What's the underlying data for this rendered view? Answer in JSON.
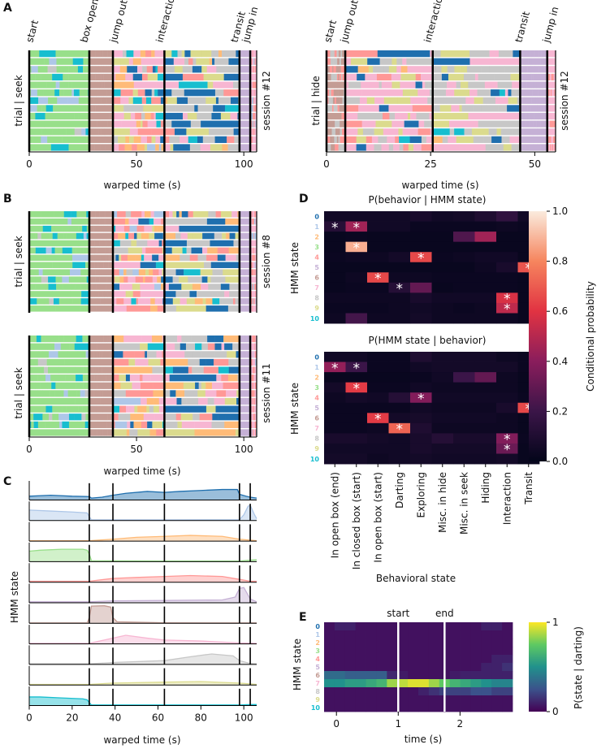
{
  "panel_labels": [
    "A",
    "B",
    "C",
    "D",
    "E"
  ],
  "hmm_colors": [
    "#1f6fae",
    "#aec7e8",
    "#ffbb78",
    "#98df8a",
    "#ff9896",
    "#c5b0d5",
    "#c49c94",
    "#f7b6d2",
    "#c7c7c7",
    "#dbdb8d",
    "#17becf"
  ],
  "state_ids": [
    "0",
    "1",
    "2",
    "3",
    "4",
    "5",
    "6",
    "7",
    "8",
    "9",
    "10"
  ],
  "chart_data": [
    {
      "id": "A-left",
      "type": "ethogram",
      "ylabel": "trial | seek",
      "session_label": "session #12",
      "xlabel": "warped time (s)",
      "x_ticks": [
        0,
        50,
        100
      ],
      "xlim": [
        0,
        106
      ],
      "n_trials": 13,
      "event_labels": [
        "start",
        "box open",
        "jump out",
        "interaction",
        "transit",
        "jump in"
      ],
      "event_times": [
        0,
        28,
        39,
        63,
        98,
        103
      ]
    },
    {
      "id": "A-right",
      "type": "ethogram",
      "ylabel": "trial | hide",
      "session_label": "session #12",
      "xlabel": "warped time (s)",
      "x_ticks": [
        0,
        25,
        50
      ],
      "xlim": [
        0,
        55
      ],
      "n_trials": 13,
      "event_labels": [
        "start",
        "jump out",
        "interaction",
        "transit",
        "jump in"
      ],
      "event_times": [
        0,
        4.5,
        25.5,
        46.5,
        53
      ]
    },
    {
      "id": "B-top",
      "type": "ethogram",
      "ylabel": "trial | seek",
      "session_label": "session #8",
      "xlim": [
        0,
        106
      ],
      "n_trials": 14,
      "event_times": [
        0,
        28,
        39,
        63,
        98,
        103
      ]
    },
    {
      "id": "B-bottom",
      "type": "ethogram",
      "ylabel": "trial | seek",
      "session_label": "session #11",
      "xlabel": "warped time (s)",
      "x_ticks": [
        0,
        50,
        100
      ],
      "xlim": [
        0,
        106
      ],
      "n_trials": 13,
      "event_times": [
        0,
        28,
        39,
        63,
        98,
        103
      ]
    },
    {
      "id": "C",
      "type": "area",
      "ylabel": "HMM state",
      "xlabel": "warped time (s)",
      "x_ticks": [
        0,
        20,
        40,
        60,
        80,
        100
      ],
      "xlim": [
        0,
        106
      ],
      "event_times": [
        28,
        39,
        63,
        98,
        103
      ],
      "series": [
        {
          "state": 0,
          "x": [
            0,
            10,
            20,
            28,
            29,
            34,
            39,
            45,
            55,
            63,
            70,
            80,
            90,
            97,
            98,
            101,
            103,
            106
          ],
          "values": [
            0.2,
            0.25,
            0.2,
            0.18,
            0.1,
            0.15,
            0.25,
            0.35,
            0.45,
            0.4,
            0.45,
            0.5,
            0.55,
            0.55,
            0.3,
            0.2,
            0.15,
            0.1
          ]
        },
        {
          "state": 1,
          "x": [
            0,
            10,
            20,
            27,
            28,
            29,
            39,
            63,
            98,
            100,
            102,
            103,
            105,
            106
          ],
          "values": [
            0.55,
            0.5,
            0.45,
            0.4,
            0.2,
            0.04,
            0.04,
            0.04,
            0.05,
            0.3,
            0.75,
            0.8,
            0.3,
            0.1
          ]
        },
        {
          "state": 2,
          "x": [
            0,
            28,
            39,
            50,
            63,
            75,
            90,
            98,
            103,
            106
          ],
          "values": [
            0.02,
            0.02,
            0.1,
            0.2,
            0.25,
            0.3,
            0.25,
            0.1,
            0.05,
            0.02
          ]
        },
        {
          "state": 3,
          "x": [
            0,
            5,
            15,
            25,
            27,
            28,
            29,
            39,
            63,
            98,
            103,
            106
          ],
          "values": [
            0.55,
            0.6,
            0.65,
            0.65,
            0.6,
            0.4,
            0.05,
            0.04,
            0.03,
            0.03,
            0.08,
            0.1
          ]
        },
        {
          "state": 4,
          "x": [
            0,
            28,
            39,
            50,
            63,
            75,
            90,
            98,
            103,
            106
          ],
          "values": [
            0.05,
            0.05,
            0.2,
            0.25,
            0.3,
            0.35,
            0.3,
            0.15,
            0.05,
            0.05
          ]
        },
        {
          "state": 5,
          "x": [
            0,
            28,
            39,
            63,
            90,
            96,
            98,
            100,
            103,
            106
          ],
          "values": [
            0.05,
            0.05,
            0.1,
            0.12,
            0.15,
            0.3,
            0.75,
            0.8,
            0.2,
            0.05
          ]
        },
        {
          "state": 6,
          "x": [
            0,
            27,
            28,
            29,
            35,
            38,
            39,
            41,
            63,
            98,
            106
          ],
          "values": [
            0.02,
            0.02,
            0.3,
            0.9,
            0.92,
            0.85,
            0.3,
            0.08,
            0.03,
            0.02,
            0.02
          ]
        },
        {
          "state": 7,
          "x": [
            0,
            28,
            39,
            45,
            55,
            63,
            80,
            98,
            106
          ],
          "values": [
            0.03,
            0.03,
            0.3,
            0.45,
            0.3,
            0.2,
            0.15,
            0.05,
            0.03
          ]
        },
        {
          "state": 8,
          "x": [
            0,
            28,
            39,
            63,
            75,
            85,
            95,
            98,
            103,
            106
          ],
          "values": [
            0.03,
            0.03,
            0.1,
            0.2,
            0.4,
            0.55,
            0.45,
            0.2,
            0.05,
            0.03
          ]
        },
        {
          "state": 9,
          "x": [
            0,
            28,
            39,
            63,
            80,
            98,
            106
          ],
          "values": [
            0.03,
            0.03,
            0.1,
            0.15,
            0.18,
            0.1,
            0.03
          ]
        },
        {
          "state": 10,
          "x": [
            0,
            5,
            15,
            25,
            27,
            28,
            29,
            39,
            63,
            98,
            103,
            106
          ],
          "values": [
            0.45,
            0.45,
            0.4,
            0.35,
            0.3,
            0.15,
            0.03,
            0.03,
            0.03,
            0.03,
            0.05,
            0.05
          ]
        }
      ]
    },
    {
      "id": "D-top",
      "type": "heatmap",
      "title": "P(behavior | HMM state)",
      "ylabel": "HMM state",
      "values": [
        [
          0.05,
          0.05,
          0.05,
          0.05,
          0.08,
          0.05,
          0.06,
          0.1,
          0.16,
          0.05
        ],
        [
          0.12,
          0.45,
          0.05,
          0.05,
          0.03,
          0.03,
          0.03,
          0.03,
          0.04,
          0.03
        ],
        [
          0.02,
          0.03,
          0.02,
          0.02,
          0.02,
          0.02,
          0.25,
          0.45,
          0.02,
          0.02
        ],
        [
          0.02,
          0.88,
          0.02,
          0.02,
          0.02,
          0.02,
          0.02,
          0.02,
          0.02,
          0.02
        ],
        [
          0.03,
          0.04,
          0.04,
          0.06,
          0.65,
          0.03,
          0.04,
          0.05,
          0.05,
          0.02
        ],
        [
          0.02,
          0.02,
          0.02,
          0.02,
          0.02,
          0.02,
          0.02,
          0.04,
          0.08,
          0.68
        ],
        [
          0.02,
          0.04,
          0.65,
          0.04,
          0.04,
          0.03,
          0.03,
          0.03,
          0.03,
          0.02
        ],
        [
          0.02,
          0.03,
          0.03,
          0.12,
          0.3,
          0.02,
          0.03,
          0.03,
          0.03,
          0.02
        ],
        [
          0.04,
          0.04,
          0.04,
          0.04,
          0.08,
          0.05,
          0.05,
          0.05,
          0.58,
          0.02
        ],
        [
          0.03,
          0.03,
          0.03,
          0.04,
          0.05,
          0.04,
          0.03,
          0.04,
          0.52,
          0.02
        ],
        [
          0.04,
          0.22,
          0.04,
          0.04,
          0.06,
          0.04,
          0.04,
          0.04,
          0.04,
          0.02
        ]
      ],
      "asterisks": [
        [
          1,
          0
        ],
        [
          1,
          1
        ],
        [
          3,
          1
        ],
        [
          4,
          4
        ],
        [
          5,
          9
        ],
        [
          6,
          2
        ],
        [
          7,
          3
        ],
        [
          8,
          8
        ],
        [
          9,
          8
        ]
      ]
    },
    {
      "id": "D-bottom",
      "type": "heatmap",
      "title": "P(HMM state | behavior)",
      "ylabel": "HMM state",
      "xlabel": "Behavioral state",
      "x_tick_labels": [
        "In open box (end)",
        "In closed box (start)",
        "In open box (start)",
        "Darting",
        "Exploring",
        "Misc. in hide",
        "Misc. in seek",
        "Hiding",
        "Interaction",
        "Transit"
      ],
      "values": [
        [
          0.05,
          0.05,
          0.03,
          0.03,
          0.1,
          0.06,
          0.06,
          0.06,
          0.04,
          0.03
        ],
        [
          0.42,
          0.2,
          0.03,
          0.03,
          0.05,
          0.06,
          0.06,
          0.06,
          0.06,
          0.03
        ],
        [
          0.02,
          0.02,
          0.02,
          0.02,
          0.03,
          0.05,
          0.2,
          0.3,
          0.04,
          0.02
        ],
        [
          0.06,
          0.62,
          0.03,
          0.03,
          0.05,
          0.04,
          0.04,
          0.04,
          0.04,
          0.02
        ],
        [
          0.04,
          0.06,
          0.05,
          0.12,
          0.38,
          0.05,
          0.05,
          0.05,
          0.05,
          0.03
        ],
        [
          0.03,
          0.03,
          0.03,
          0.03,
          0.05,
          0.04,
          0.04,
          0.04,
          0.08,
          0.65
        ],
        [
          0.03,
          0.03,
          0.62,
          0.06,
          0.07,
          0.05,
          0.05,
          0.05,
          0.04,
          0.02
        ],
        [
          0.03,
          0.03,
          0.04,
          0.72,
          0.1,
          0.04,
          0.04,
          0.04,
          0.04,
          0.02
        ],
        [
          0.08,
          0.08,
          0.06,
          0.05,
          0.08,
          0.12,
          0.08,
          0.08,
          0.38,
          0.03
        ],
        [
          0.05,
          0.05,
          0.05,
          0.05,
          0.08,
          0.06,
          0.06,
          0.06,
          0.32,
          0.02
        ],
        [
          0.06,
          0.06,
          0.04,
          0.05,
          0.06,
          0.05,
          0.05,
          0.05,
          0.06,
          0.02
        ]
      ],
      "asterisks": [
        [
          1,
          0
        ],
        [
          1,
          1
        ],
        [
          3,
          1
        ],
        [
          4,
          4
        ],
        [
          5,
          9
        ],
        [
          6,
          2
        ],
        [
          7,
          3
        ],
        [
          8,
          8
        ],
        [
          9,
          8
        ]
      ]
    },
    {
      "id": "D-colorbar",
      "type": "colorbar",
      "label": "Conditional probability",
      "range": [
        0,
        1
      ],
      "ticks": [
        "0.0",
        "0.2",
        "0.4",
        "0.6",
        "0.8",
        "1.0"
      ]
    },
    {
      "id": "E",
      "type": "heatmap",
      "ylabel": "HMM state",
      "xlabel": "time (s)",
      "x_ticks": [
        0,
        1,
        2
      ],
      "xlim": [
        -0.2,
        2.85
      ],
      "annotations": [
        {
          "label": "start",
          "x": 1.0
        },
        {
          "label": "end",
          "x": 1.75
        }
      ],
      "rows": [
        [
          0.05,
          0.1,
          0.1,
          0.05,
          0.05,
          0.05,
          0.05,
          0.05,
          0.05,
          0.05,
          0.05,
          0.05,
          0.05,
          0.05,
          0.05,
          0.1,
          0.1,
          0.05
        ],
        [
          0.05,
          0.05,
          0.05,
          0.05,
          0.05,
          0.05,
          0.05,
          0.05,
          0.05,
          0.05,
          0.05,
          0.05,
          0.05,
          0.05,
          0.05,
          0.05,
          0.05,
          0.05
        ],
        [
          0.05,
          0.05,
          0.05,
          0.05,
          0.05,
          0.05,
          0.05,
          0.05,
          0.05,
          0.05,
          0.05,
          0.05,
          0.05,
          0.05,
          0.05,
          0.05,
          0.05,
          0.05
        ],
        [
          0.05,
          0.05,
          0.05,
          0.05,
          0.05,
          0.05,
          0.05,
          0.05,
          0.05,
          0.05,
          0.05,
          0.05,
          0.05,
          0.05,
          0.05,
          0.05,
          0.05,
          0.05
        ],
        [
          0.05,
          0.05,
          0.05,
          0.05,
          0.05,
          0.05,
          0.05,
          0.05,
          0.05,
          0.05,
          0.05,
          0.05,
          0.05,
          0.05,
          0.05,
          0.05,
          0.1,
          0.1
        ],
        [
          0.05,
          0.05,
          0.05,
          0.05,
          0.05,
          0.05,
          0.05,
          0.05,
          0.05,
          0.05,
          0.05,
          0.05,
          0.05,
          0.05,
          0.05,
          0.1,
          0.1,
          0.15
        ],
        [
          0.35,
          0.35,
          0.3,
          0.3,
          0.3,
          0.3,
          0.12,
          0.08,
          0.05,
          0.05,
          0.05,
          0.05,
          0.08,
          0.1,
          0.1,
          0.1,
          0.1,
          0.1
        ],
        [
          0.5,
          0.5,
          0.55,
          0.55,
          0.6,
          0.65,
          0.85,
          0.9,
          0.95,
          0.95,
          0.85,
          0.75,
          0.65,
          0.6,
          0.55,
          0.5,
          0.45,
          0.45
        ],
        [
          0.05,
          0.05,
          0.05,
          0.05,
          0.05,
          0.05,
          0.05,
          0.05,
          0.05,
          0.1,
          0.15,
          0.2,
          0.2,
          0.2,
          0.25,
          0.25,
          0.2,
          0.2
        ],
        [
          0.05,
          0.05,
          0.05,
          0.05,
          0.05,
          0.05,
          0.05,
          0.05,
          0.05,
          0.05,
          0.05,
          0.05,
          0.05,
          0.05,
          0.05,
          0.05,
          0.05,
          0.05
        ],
        [
          0.05,
          0.05,
          0.05,
          0.05,
          0.05,
          0.05,
          0.05,
          0.05,
          0.05,
          0.05,
          0.05,
          0.05,
          0.05,
          0.05,
          0.05,
          0.05,
          0.05,
          0.05
        ]
      ]
    },
    {
      "id": "E-colorbar",
      "type": "colorbar",
      "label": "P(state | darting)",
      "range": [
        0,
        1
      ],
      "ticks": [
        "0",
        "1"
      ]
    }
  ]
}
